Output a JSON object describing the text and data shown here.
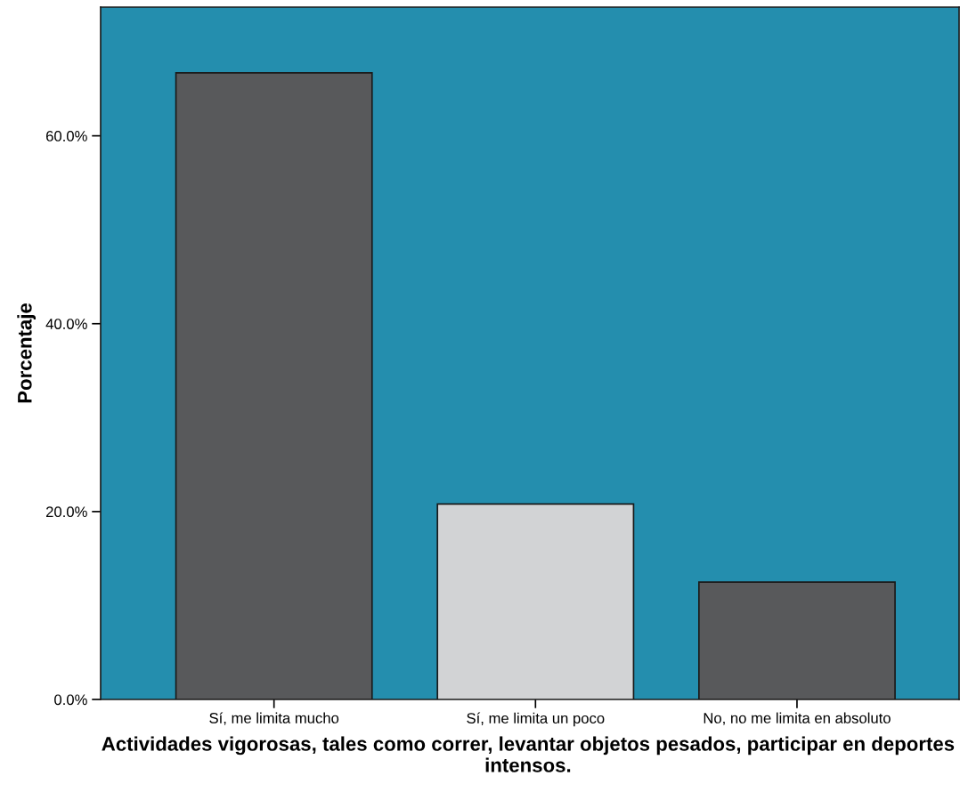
{
  "chart_data": {
    "type": "bar",
    "xlabel": "Actividades vigorosas, tales como correr, levantar objetos pesados, participar en deportes intensos.",
    "ylabel": "Porcentaje",
    "categories": [
      "Sí, me limita mucho",
      "Sí, me limita un poco",
      "No, no me limita en absoluto"
    ],
    "values": [
      66.7,
      20.8,
      12.5
    ],
    "colors": [
      "#58595b",
      "#d2d3d5",
      "#58595b"
    ],
    "ylim": [
      0,
      73.7
    ],
    "yticks": [
      {
        "value": 0,
        "label": "0.0%"
      },
      {
        "value": 20,
        "label": "20.0%"
      },
      {
        "value": 40,
        "label": "40.0%"
      },
      {
        "value": 60,
        "label": "60.0%"
      }
    ],
    "grid": false,
    "legend": false
  }
}
